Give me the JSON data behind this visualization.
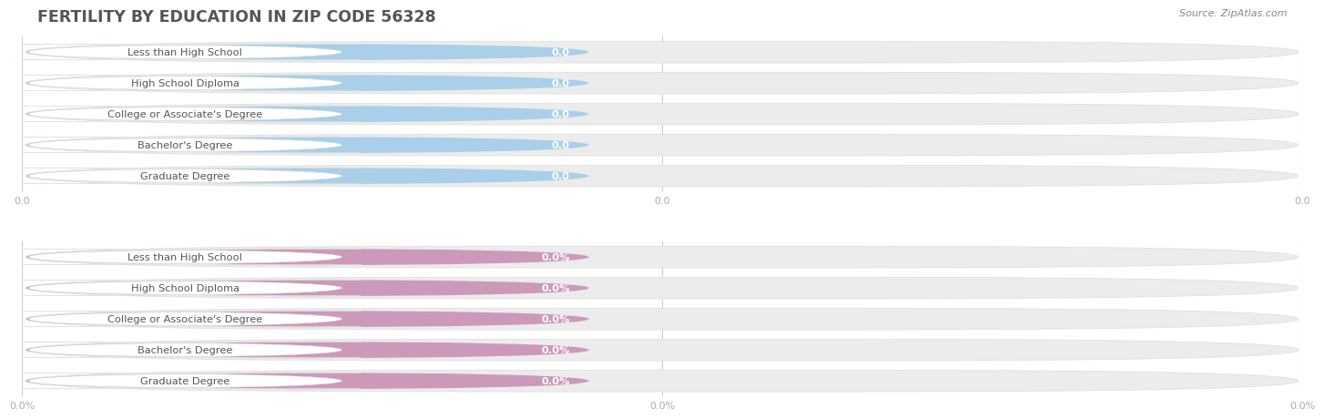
{
  "title": "FERTILITY BY EDUCATION IN ZIP CODE 56328",
  "source": "Source: ZipAtlas.com",
  "categories": [
    "Less than High School",
    "High School Diploma",
    "College or Associate's Degree",
    "Bachelor's Degree",
    "Graduate Degree"
  ],
  "top_values": [
    0.0,
    0.0,
    0.0,
    0.0,
    0.0
  ],
  "bottom_values": [
    0.0,
    0.0,
    0.0,
    0.0,
    0.0
  ],
  "top_bar_color": "#aacfe8",
  "bottom_bar_color": "#cc99bb",
  "bar_bg_color": "#ececec",
  "label_bg_color": "#ffffff",
  "label_text_color": "#555555",
  "value_text_color": "#ffffff",
  "title_color": "#555555",
  "source_color": "#888888",
  "axis_tick_color": "#aaaaaa",
  "grid_color": "#cccccc",
  "bg_color": "#ffffff",
  "top_tick_labels": [
    "0.0",
    "0.0",
    "0.0"
  ],
  "bottom_tick_labels": [
    "0.0%",
    "0.0%",
    "0.0%"
  ],
  "fig_width": 14.06,
  "fig_height": 4.76
}
